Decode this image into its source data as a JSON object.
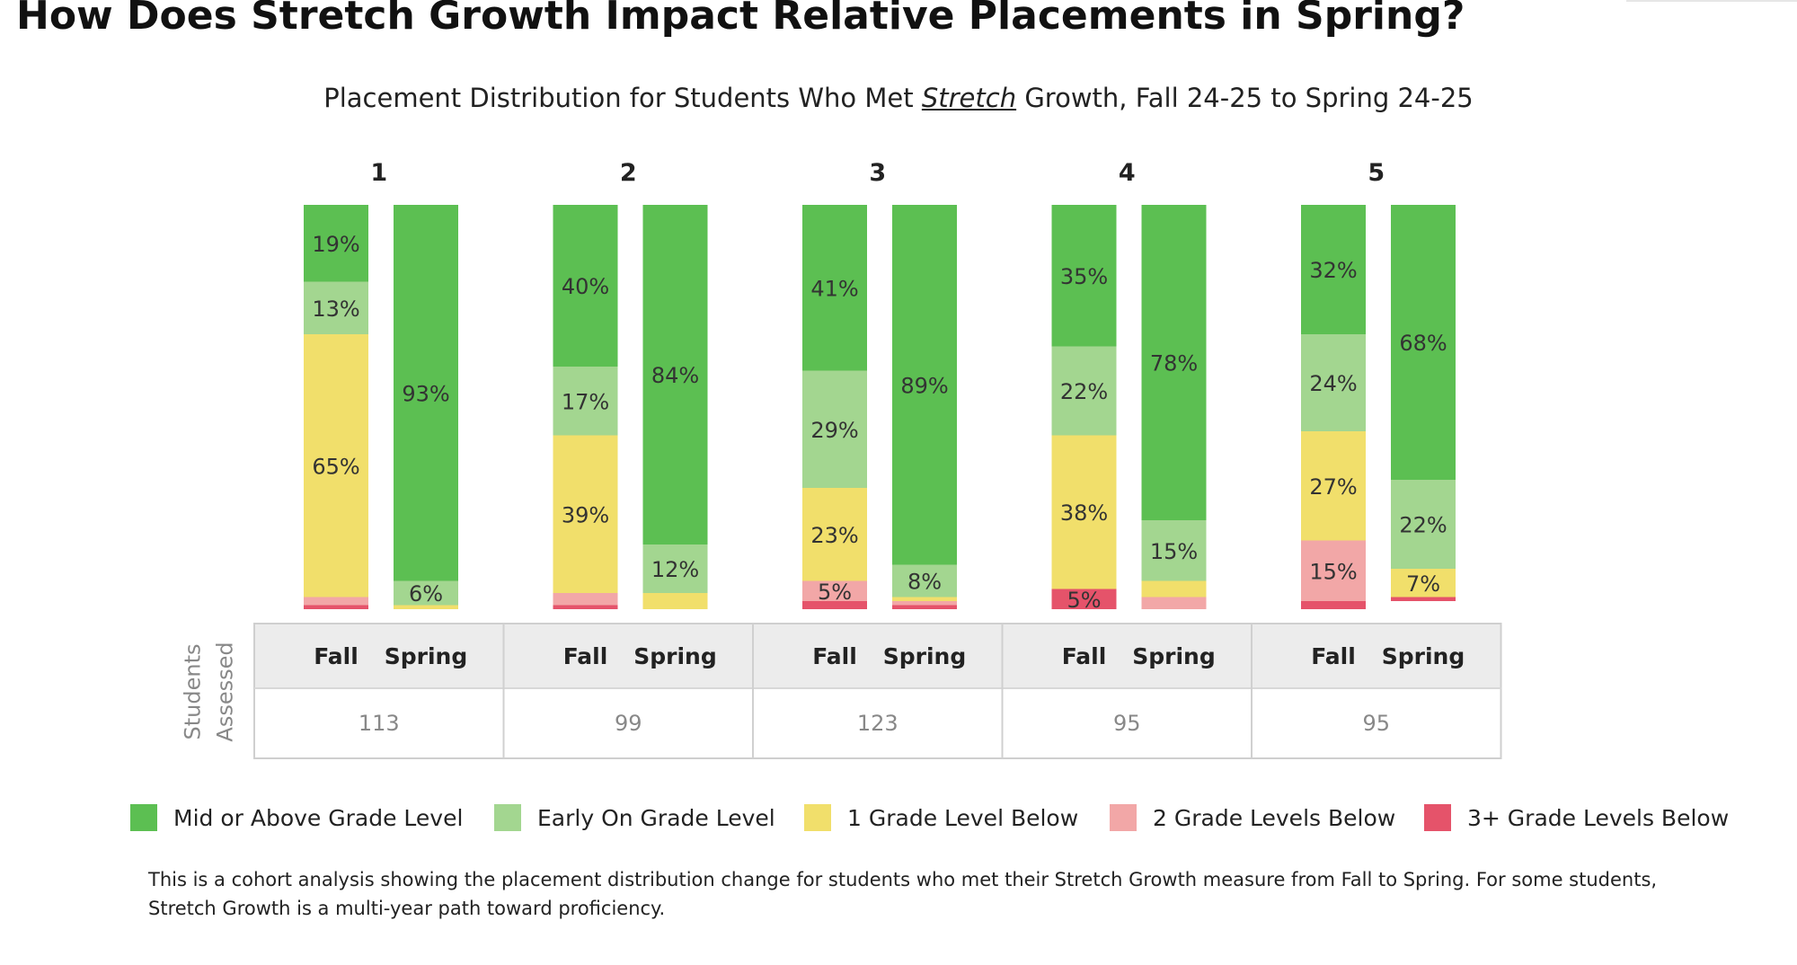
{
  "page": {
    "title": "How Does Stretch Growth Impact Relative Placements in Spring?"
  },
  "chart_data": {
    "type": "bar",
    "stacked": true,
    "title_parts": {
      "before": "Placement Distribution for Students Who Met ",
      "emphasis": "Stretch",
      "after": " Growth, Fall 24-25 to Spring 24-25"
    },
    "groups": [
      "1",
      "2",
      "3",
      "4",
      "5"
    ],
    "bars": [
      "Fall",
      "Spring"
    ],
    "ylim": [
      0,
      100
    ],
    "series": [
      {
        "name": "Mid or Above Grade Level",
        "color": "#5cbf52",
        "values": [
          [
            19,
            93
          ],
          [
            40,
            84
          ],
          [
            41,
            89
          ],
          [
            35,
            78
          ],
          [
            32,
            68
          ]
        ]
      },
      {
        "name": "Early On Grade Level",
        "color": "#a3d690",
        "values": [
          [
            13,
            6
          ],
          [
            17,
            12
          ],
          [
            29,
            8
          ],
          [
            22,
            15
          ],
          [
            24,
            22
          ]
        ]
      },
      {
        "name": "1 Grade Level Below",
        "color": "#f1df6b",
        "values": [
          [
            65,
            1
          ],
          [
            39,
            4
          ],
          [
            23,
            1
          ],
          [
            38,
            4
          ],
          [
            27,
            7
          ]
        ]
      },
      {
        "name": "2 Grade Levels Below",
        "color": "#f2a7a7",
        "values": [
          [
            2,
            0
          ],
          [
            3,
            0
          ],
          [
            5,
            1
          ],
          [
            0,
            3
          ],
          [
            15,
            0
          ]
        ]
      },
      {
        "name": "3+ Grade Levels Below",
        "color": "#e5536a",
        "values": [
          [
            1,
            0
          ],
          [
            1,
            0
          ],
          [
            2,
            1
          ],
          [
            5,
            0
          ],
          [
            2,
            1
          ]
        ]
      }
    ],
    "labels": [
      [
        [
          "19%",
          "13%",
          "65%",
          "",
          ""
        ],
        [
          "93%",
          "6%",
          "",
          "",
          ""
        ]
      ],
      [
        [
          "40%",
          "17%",
          "39%",
          "",
          ""
        ],
        [
          "84%",
          "12%",
          "",
          "",
          ""
        ]
      ],
      [
        [
          "41%",
          "29%",
          "23%",
          "5%",
          ""
        ],
        [
          "89%",
          "8%",
          "",
          "",
          ""
        ]
      ],
      [
        [
          "35%",
          "22%",
          "38%",
          "",
          "5%"
        ],
        [
          "78%",
          "15%",
          "",
          "",
          ""
        ]
      ],
      [
        [
          "32%",
          "24%",
          "27%",
          "15%",
          ""
        ],
        [
          "68%",
          "22%",
          "7%",
          "",
          ""
        ]
      ]
    ],
    "table": {
      "row_title": "Students Assessed",
      "header": [
        "Fall",
        "Spring"
      ],
      "counts": [
        "113",
        "99",
        "123",
        "95",
        "95"
      ]
    }
  },
  "legend": [
    {
      "label": "Mid or Above Grade Level",
      "color": "#5cbf52"
    },
    {
      "label": "Early On Grade Level",
      "color": "#a3d690"
    },
    {
      "label": "1 Grade Level Below",
      "color": "#f1df6b"
    },
    {
      "label": "2 Grade Levels Below",
      "color": "#f2a7a7"
    },
    {
      "label": "3+ Grade Levels Below",
      "color": "#e5536a"
    }
  ],
  "footnote": "This is a cohort analysis showing the placement distribution change for students who met their Stretch Growth measure from Fall to Spring. For some students, Stretch Growth is a multi-year path toward proficiency."
}
